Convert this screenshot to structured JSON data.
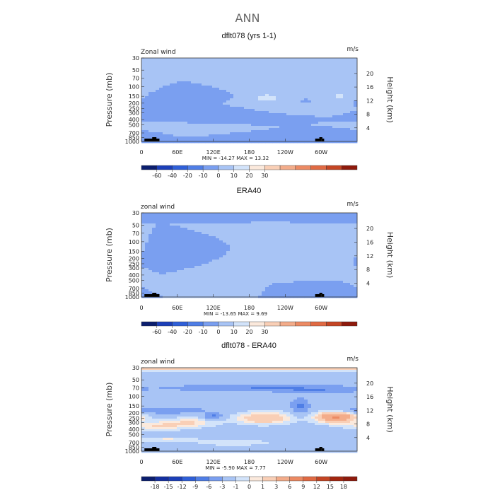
{
  "figure_title": "ANN",
  "colors": {
    "land": "#000000",
    "frame": "#333333"
  },
  "chart_data": [
    {
      "type": "contour",
      "title": "dflt078 (yrs 1-1)",
      "variable": "Zonal wind",
      "units": "m/s",
      "ylabel": "Pressure (mb)",
      "ylabel_right": "Height (km)",
      "xticks": [
        "0",
        "60E",
        "120E",
        "180",
        "120W",
        "60W"
      ],
      "xtick_values": [
        0,
        60,
        120,
        180,
        240,
        300
      ],
      "xlim": [
        0,
        360
      ],
      "yticks": [
        "30",
        "50",
        "70",
        "100",
        "150",
        "200",
        "250",
        "300",
        "400",
        "500",
        "700",
        "850",
        "1000"
      ],
      "ytick_values": [
        30,
        50,
        70,
        100,
        150,
        200,
        250,
        300,
        400,
        500,
        700,
        850,
        1000
      ],
      "ylim": [
        30,
        1000
      ],
      "height_ticks": [
        "4",
        "8",
        "12",
        "16",
        "20"
      ],
      "height_values": [
        4,
        8,
        12,
        16,
        20
      ],
      "stats": "MIN = -14.27   MAX =  13.32",
      "min": -14.27,
      "max": 13.32,
      "colorbar_labels": [
        "-60",
        "-40",
        "-20",
        "-10",
        "0",
        "10",
        "20",
        "30"
      ],
      "colorbar_colors": [
        "#0b1e6e",
        "#1c3fb8",
        "#2f5fd8",
        "#4f7ee6",
        "#7a9ff0",
        "#a8c4f5",
        "#d2e3fa",
        "#fbe9dc",
        "#f9cfb6",
        "#f3ac8a",
        "#ec8a63",
        "#e06a43",
        "#c44524",
        "#8e1a0c"
      ],
      "background_value": 0,
      "blobs": [
        {
          "lon": 45,
          "p": 175,
          "a": 35,
          "b": 0.13,
          "v": -5
        },
        {
          "lon": 95,
          "p": 150,
          "a": 32,
          "b": 0.1,
          "v": -6
        },
        {
          "lon": 120,
          "p": 300,
          "a": 38,
          "b": 0.13,
          "v": -3
        },
        {
          "lon": 210,
          "p": 160,
          "a": 26,
          "b": 0.2,
          "v": 12
        },
        {
          "lon": 330,
          "p": 150,
          "a": 18,
          "b": 0.18,
          "v": 11
        },
        {
          "lon": 75,
          "p": 600,
          "a": 30,
          "b": 0.08,
          "v": 4
        },
        {
          "lon": 230,
          "p": 850,
          "a": 36,
          "b": 0.08,
          "v": -3
        },
        {
          "lon": 330,
          "p": 720,
          "a": 28,
          "b": 0.07,
          "v": -3
        },
        {
          "lon": 272,
          "p": 180,
          "a": 5,
          "b": 0.05,
          "v": -2
        }
      ]
    },
    {
      "type": "contour",
      "title": "ERA40",
      "variable": "zonal wind",
      "units": "m/s",
      "ylabel": "Pressure (mb)",
      "ylabel_right": "Height (km)",
      "xticks": [
        "0",
        "60E",
        "120E",
        "180",
        "120W",
        "60W"
      ],
      "xtick_values": [
        0,
        60,
        120,
        180,
        240,
        300
      ],
      "xlim": [
        0,
        360
      ],
      "yticks": [
        "30",
        "50",
        "70",
        "100",
        "150",
        "200",
        "250",
        "300",
        "400",
        "500",
        "700",
        "850",
        "1000"
      ],
      "ytick_values": [
        30,
        50,
        70,
        100,
        150,
        200,
        250,
        300,
        400,
        500,
        700,
        850,
        1000
      ],
      "ylim": [
        30,
        1000
      ],
      "height_ticks": [
        "4",
        "8",
        "12",
        "16",
        "20"
      ],
      "height_values": [
        4,
        8,
        12,
        16,
        20
      ],
      "stats": "MIN = -13.65   MAX =   9.69",
      "min": -13.65,
      "max": 9.69,
      "colorbar_labels": [
        "-60",
        "-40",
        "-20",
        "-10",
        "0",
        "10",
        "20",
        "30"
      ],
      "colorbar_colors": [
        "#0b1e6e",
        "#1c3fb8",
        "#2f5fd8",
        "#4f7ee6",
        "#7a9ff0",
        "#a8c4f5",
        "#d2e3fa",
        "#fbe9dc",
        "#f9cfb6",
        "#f3ac8a",
        "#ec8a63",
        "#e06a43",
        "#c44524",
        "#8e1a0c"
      ],
      "background_value": 0,
      "blobs": [
        {
          "lon": 180,
          "p": 30,
          "a": 400,
          "b": 0.06,
          "v": -4
        },
        {
          "lon": 75,
          "p": 150,
          "a": 35,
          "b": 0.14,
          "v": -4
        },
        {
          "lon": 95,
          "p": 135,
          "a": 20,
          "b": 0.08,
          "v": -6
        },
        {
          "lon": 215,
          "p": 170,
          "a": 32,
          "b": 0.2,
          "v": 9
        },
        {
          "lon": 320,
          "p": 140,
          "a": 18,
          "b": 0.14,
          "v": 8
        },
        {
          "lon": 70,
          "p": 700,
          "a": 30,
          "b": 0.07,
          "v": 4
        },
        {
          "lon": 320,
          "p": 750,
          "a": 25,
          "b": 0.07,
          "v": -3
        }
      ]
    },
    {
      "type": "contour",
      "title": "dflt078 - ERA40",
      "variable": "zonal wind",
      "units": "m/s",
      "ylabel": "Pressure (mb)",
      "ylabel_right": "Height (km)",
      "xticks": [
        "0",
        "60E",
        "120E",
        "180",
        "120W",
        "60W"
      ],
      "xtick_values": [
        0,
        60,
        120,
        180,
        240,
        300
      ],
      "xlim": [
        0,
        360
      ],
      "yticks": [
        "30",
        "50",
        "70",
        "100",
        "150",
        "200",
        "250",
        "300",
        "400",
        "500",
        "700",
        "850",
        "1000"
      ],
      "ytick_values": [
        30,
        50,
        70,
        100,
        150,
        200,
        250,
        300,
        400,
        500,
        700,
        850,
        1000
      ],
      "ylim": [
        30,
        1000
      ],
      "height_ticks": [
        "4",
        "8",
        "12",
        "16",
        "20"
      ],
      "height_values": [
        4,
        8,
        12,
        16,
        20
      ],
      "stats": "MIN = -5.90   MAX =   7.77",
      "min": -5.9,
      "max": 7.77,
      "colorbar_labels": [
        "-18",
        "-15",
        "-12",
        "-9",
        "-6",
        "-3",
        "-1",
        "0",
        "1",
        "3",
        "6",
        "9",
        "12",
        "15",
        "18"
      ],
      "colorbar_colors": [
        "#0b1e6e",
        "#142fa0",
        "#1c3fb8",
        "#2f5fd8",
        "#4f7ee6",
        "#7a9ff0",
        "#a8c4f5",
        "#d2e3fa",
        "#fbe9dc",
        "#f9cfb6",
        "#f3ac8a",
        "#ec8a63",
        "#e06a43",
        "#c44524",
        "#a3260f",
        "#8e1a0c"
      ],
      "background_value": -1.5,
      "blobs": [
        {
          "lon": 180,
          "p": 30,
          "a": 600,
          "b": 0.08,
          "v": 4.5
        },
        {
          "lon": 200,
          "p": 70,
          "a": 110,
          "b": 0.1,
          "v": -4.5
        },
        {
          "lon": 295,
          "p": 80,
          "a": 45,
          "b": 0.09,
          "v": -3
        },
        {
          "lon": 40,
          "p": 180,
          "a": 45,
          "b": 0.1,
          "v": -4
        },
        {
          "lon": 120,
          "p": 230,
          "a": 10,
          "b": 0.1,
          "v": -5
        },
        {
          "lon": 80,
          "p": 300,
          "a": 30,
          "b": 0.13,
          "v": 2.5
        },
        {
          "lon": 30,
          "p": 350,
          "a": 30,
          "b": 0.12,
          "v": 2.5
        },
        {
          "lon": 205,
          "p": 250,
          "a": 30,
          "b": 0.16,
          "v": 4.5
        },
        {
          "lon": 325,
          "p": 240,
          "a": 22,
          "b": 0.16,
          "v": 8
        },
        {
          "lon": 265,
          "p": 150,
          "a": 10,
          "b": 0.22,
          "v": -5
        },
        {
          "lon": 155,
          "p": 700,
          "a": 40,
          "b": 0.08,
          "v": 1.5
        },
        {
          "lon": 45,
          "p": 620,
          "a": 30,
          "b": 0.06,
          "v": 2
        }
      ]
    }
  ]
}
